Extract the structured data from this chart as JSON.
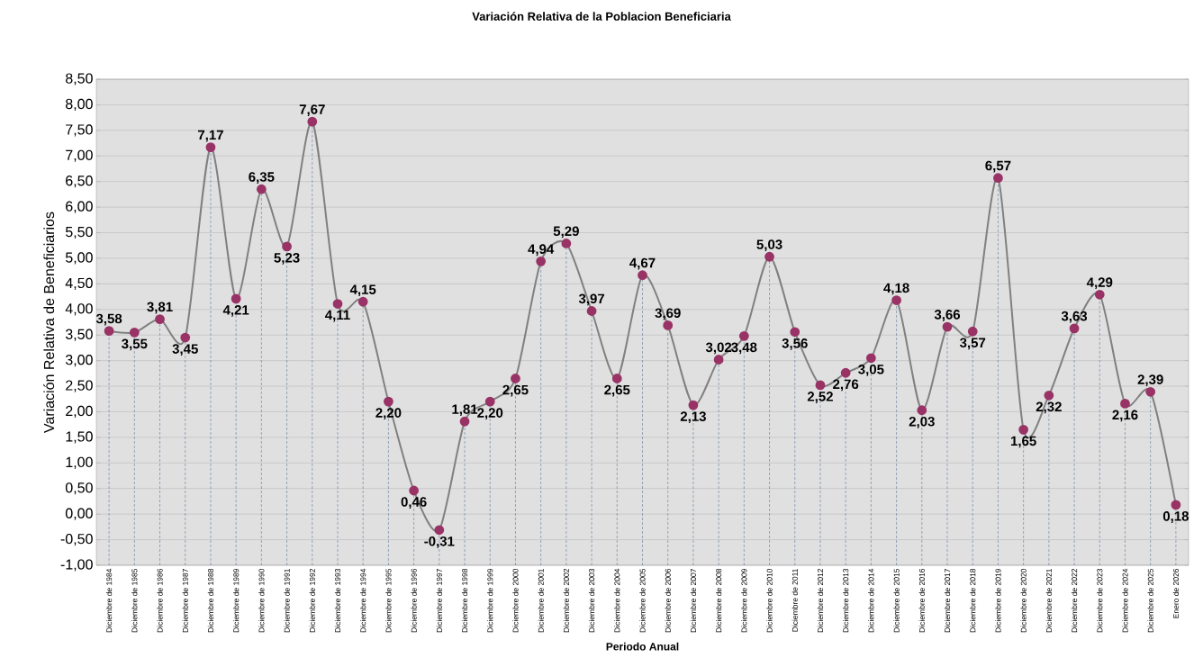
{
  "chart_data": {
    "type": "line",
    "title": "Variación Relativa de la Poblacion Beneficiaria",
    "xlabel": "Periodo Anual",
    "ylabel": "Variación Relativa de Beneficiarios",
    "categories": [
      "Diciembre de 1984",
      "Diciembre de 1985",
      "Diciembre de 1986",
      "Diciembre de 1987",
      "Diciembre de 1988",
      "Diciembre de 1989",
      "Diciembre de 1990",
      "Diciembre de 1991",
      "Diciembre de 1992",
      "Diciembre de 1993",
      "Diciembre de 1994",
      "Diciembre de 1995",
      "Diciembre de 1996",
      "Diciembre de 1997",
      "Diciembre de 1998",
      "Diciembre de 1999",
      "Diciembre de 2000",
      "Diciembre de 2001",
      "Diciembre de 2002",
      "Diciembre de 2003",
      "Diciembre de 2004",
      "Diciembre de 2005",
      "Diciembre de 2006",
      "Diciembre de 2007",
      "Diciembre de 2008",
      "Diciembre de 2009",
      "Diciembre de 2010",
      "Diciembre de 2011",
      "Diciembre de 2012",
      "Diciembre de 2013",
      "Diciembre de 2014",
      "Diciembre de 2015",
      "Diciembre de 2016",
      "Diciembre de 2017",
      "Diciembre de 2018",
      "Diciembre de 2019",
      "Diciembre de 2020",
      "Diciembre de 2021",
      "Diciembre de 2022",
      "Diciembre de 2023",
      "Diciembre de 2024",
      "Diciembre de 2025",
      "Enero de 2026"
    ],
    "series": [
      {
        "color": "#993366",
        "values": [
          3.58,
          3.55,
          3.81,
          3.45,
          7.17,
          4.21,
          6.35,
          5.23,
          7.67,
          4.11,
          4.15,
          2.2,
          0.46,
          -0.31,
          1.81,
          2.2,
          2.65,
          4.94,
          5.29,
          3.97,
          2.65,
          4.67,
          3.69,
          2.13,
          3.02,
          3.48,
          5.03,
          3.56,
          2.52,
          2.76,
          3.05,
          4.18,
          2.03,
          3.66,
          3.57,
          6.57,
          1.65,
          2.32,
          3.63,
          4.29,
          2.16,
          2.39,
          0.18
        ],
        "value_labels": [
          "3,58",
          "3,55",
          "3,81",
          "3,45",
          "7,17",
          "4,21",
          "6,35",
          "5,23",
          "7,67",
          "4,11",
          "4,15",
          "2,20",
          "0,46",
          "-0,31",
          "1,81",
          "2,20",
          "2,65",
          "4,94",
          "5,29",
          "3,97",
          "2,65",
          "4,67",
          "3,69",
          "2,13",
          "3,02",
          "3,48",
          "5,03",
          "3,56",
          "2,52",
          "2,76",
          "3,05",
          "4,18",
          "2,03",
          "3,66",
          "3,57",
          "6,57",
          "1,65",
          "2,32",
          "3,63",
          "4,29",
          "2,16",
          "2,39",
          "0,18"
        ]
      }
    ],
    "ylim": [
      -1,
      8.5
    ],
    "yticks": [
      {
        "value": -1,
        "label": "-1,00"
      },
      {
        "value": -0.5,
        "label": "-0,50"
      },
      {
        "value": 0,
        "label": "0,00"
      },
      {
        "value": 0.5,
        "label": "0,50"
      },
      {
        "value": 1,
        "label": "1,00"
      },
      {
        "value": 1.5,
        "label": "1,50"
      },
      {
        "value": 2,
        "label": "2,00"
      },
      {
        "value": 2.5,
        "label": "2,50"
      },
      {
        "value": 3,
        "label": "3,00"
      },
      {
        "value": 3.5,
        "label": "3,50"
      },
      {
        "value": 4,
        "label": "4,00"
      },
      {
        "value": 4.5,
        "label": "4,50"
      },
      {
        "value": 5,
        "label": "5,00"
      },
      {
        "value": 5.5,
        "label": "5,50"
      },
      {
        "value": 6,
        "label": "6,00"
      },
      {
        "value": 6.5,
        "label": "6,50"
      },
      {
        "value": 7,
        "label": "7,00"
      },
      {
        "value": 7.5,
        "label": "7,50"
      },
      {
        "value": 8,
        "label": "8,00"
      },
      {
        "value": 8.5,
        "label": "8,50"
      }
    ],
    "grid": true,
    "marker": "circle",
    "line_style": "solid"
  }
}
